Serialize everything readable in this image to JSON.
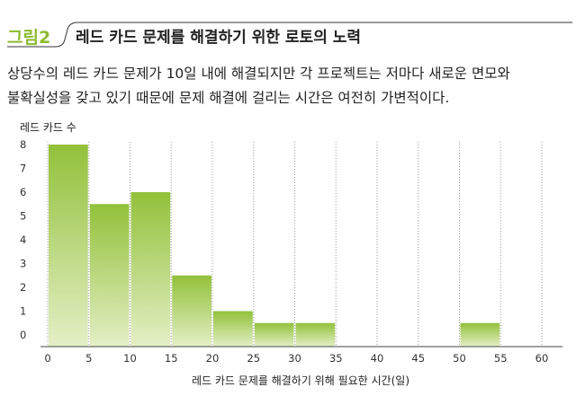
{
  "figure": {
    "label": "그림2",
    "title": "레드 카드 문제를 해결하기 위한 로토의 노력"
  },
  "caption": {
    "line1": "상당수의 레드 카드 문제가 10일 내에 해결되지만 각 프로젝트는 저마다 새로운 면모와",
    "line2": "불확실성을 갖고 있기 때문에 문제 해결에 걸리는 시간은 여전히 가변적이다."
  },
  "colors": {
    "accent": "#8dbb2e",
    "bar_dark": "#92c13a",
    "bar_light": "#e4efc6"
  },
  "chart_data": {
    "type": "bar",
    "title": "",
    "xlabel": "레드 카드 문제를 해결하기 위해 필요한 시간(일)",
    "ylabel": "레드 카드 수",
    "bins": [
      {
        "from": 0,
        "to": 5,
        "value": 8
      },
      {
        "from": 5,
        "to": 10,
        "value": 5.5
      },
      {
        "from": 10,
        "to": 15,
        "value": 6
      },
      {
        "from": 15,
        "to": 20,
        "value": 2.5
      },
      {
        "from": 20,
        "to": 25,
        "value": 1
      },
      {
        "from": 25,
        "to": 30,
        "value": 0.5
      },
      {
        "from": 30,
        "to": 35,
        "value": 0.5
      },
      {
        "from": 50,
        "to": 55,
        "value": 0.5
      }
    ],
    "x_ticks": [
      "0",
      "5",
      "10",
      "15",
      "20",
      "25",
      "30",
      "35",
      "40",
      "45",
      "50",
      "55",
      "60"
    ],
    "y_ticks": [
      "8",
      "7",
      "6",
      "5",
      "4",
      "3",
      "2",
      "1",
      "0"
    ],
    "xlim": [
      0,
      60
    ],
    "ylim": [
      0,
      8
    ],
    "grid": "vertical-dashed"
  }
}
